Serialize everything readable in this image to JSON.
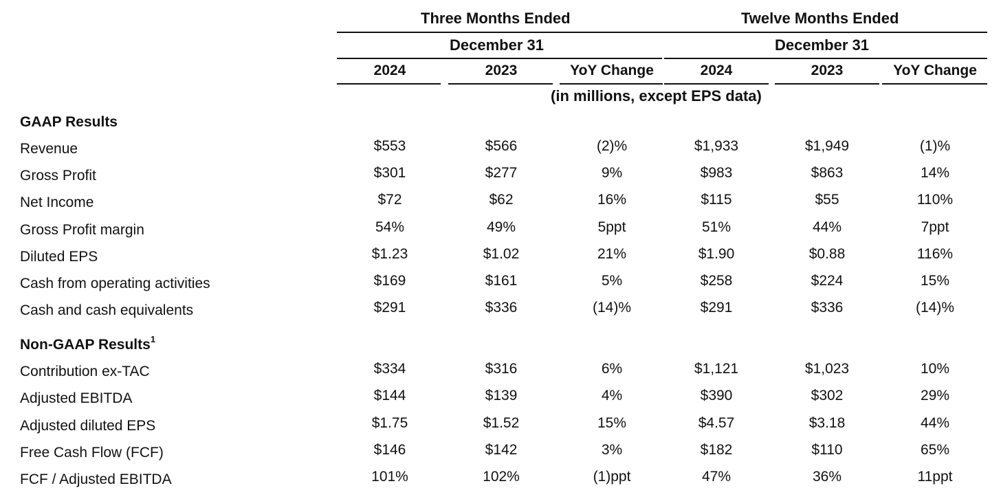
{
  "header": {
    "three_months": "Three Months Ended",
    "twelve_months": "Twelve Months Ended",
    "date_left": "December 31",
    "date_right": "December 31",
    "columns": [
      "2024",
      "2023",
      "YoY Change",
      "2024",
      "2023",
      "YoY Change"
    ],
    "units_note": "(in millions, except EPS data)"
  },
  "gaap": {
    "title": "GAAP Results",
    "rows": [
      {
        "label": "Revenue",
        "values": [
          "$553",
          "$566",
          "(2)%",
          "$1,933",
          "$1,949",
          "(1)%"
        ]
      },
      {
        "label": "Gross Profit",
        "values": [
          "$301",
          "$277",
          "9%",
          "$983",
          "$863",
          "14%"
        ]
      },
      {
        "label": "Net Income",
        "values": [
          "$72",
          "$62",
          "16%",
          "$115",
          "$55",
          "110%"
        ]
      },
      {
        "label": "Gross Profit margin",
        "values": [
          "54%",
          "49%",
          "5ppt",
          "51%",
          "44%",
          "7ppt"
        ]
      },
      {
        "label": "Diluted EPS",
        "values": [
          "$1.23",
          "$1.02",
          "21%",
          "$1.90",
          "$0.88",
          "116%"
        ]
      },
      {
        "label": "Cash from operating activities",
        "values": [
          "$169",
          "$161",
          "5%",
          "$258",
          "$224",
          "15%"
        ]
      },
      {
        "label": "Cash and cash equivalents",
        "values": [
          "$291",
          "$336",
          "(14)%",
          "$291",
          "$336",
          "(14)%"
        ]
      }
    ]
  },
  "non_gaap": {
    "title": "Non-GAAP Results",
    "footnote_marker": "1",
    "rows": [
      {
        "label": "Contribution ex-TAC",
        "values": [
          "$334",
          "$316",
          "6%",
          "$1,121",
          "$1,023",
          "10%"
        ]
      },
      {
        "label": "Adjusted EBITDA",
        "values": [
          "$144",
          "$139",
          "4%",
          "$390",
          "$302",
          "29%"
        ]
      },
      {
        "label": "Adjusted diluted EPS",
        "values": [
          "$1.75",
          "$1.52",
          "15%",
          "$4.57",
          "$3.18",
          "44%"
        ]
      },
      {
        "label": "Free Cash Flow (FCF)",
        "values": [
          "$146",
          "$142",
          "3%",
          "$182",
          "$110",
          "65%"
        ]
      },
      {
        "label": "FCF / Adjusted EBITDA",
        "values": [
          "101%",
          "102%",
          "(1)ppt",
          "47%",
          "36%",
          "11ppt"
        ]
      }
    ]
  }
}
